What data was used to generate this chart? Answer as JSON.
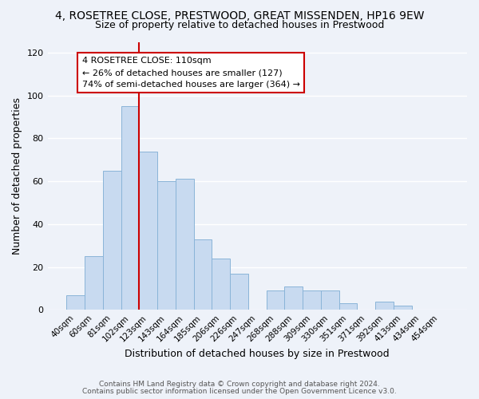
{
  "title": "4, ROSETREE CLOSE, PRESTWOOD, GREAT MISSENDEN, HP16 9EW",
  "subtitle": "Size of property relative to detached houses in Prestwood",
  "xlabel": "Distribution of detached houses by size in Prestwood",
  "ylabel": "Number of detached properties",
  "bar_labels": [
    "40sqm",
    "60sqm",
    "81sqm",
    "102sqm",
    "123sqm",
    "143sqm",
    "164sqm",
    "185sqm",
    "206sqm",
    "226sqm",
    "247sqm",
    "268sqm",
    "288sqm",
    "309sqm",
    "330sqm",
    "351sqm",
    "371sqm",
    "392sqm",
    "413sqm",
    "434sqm",
    "454sqm"
  ],
  "bar_values": [
    7,
    25,
    65,
    95,
    74,
    60,
    61,
    33,
    24,
    17,
    0,
    9,
    11,
    9,
    9,
    3,
    0,
    4,
    2,
    0,
    0
  ],
  "bar_color": "#c8daf0",
  "bar_edge_color": "#8ab4d8",
  "vline_x": 3.5,
  "vline_color": "#cc0000",
  "annotation_title": "4 ROSETREE CLOSE: 110sqm",
  "annotation_line1": "← 26% of detached houses are smaller (127)",
  "annotation_line2": "74% of semi-detached houses are larger (364) →",
  "annotation_box_color": "#ffffff",
  "annotation_box_edge": "#cc0000",
  "ylim": [
    0,
    125
  ],
  "yticks": [
    0,
    20,
    40,
    60,
    80,
    100,
    120
  ],
  "footer1": "Contains HM Land Registry data © Crown copyright and database right 2024.",
  "footer2": "Contains public sector information licensed under the Open Government Licence v3.0.",
  "bg_color": "#eef2f9",
  "grid_color": "#ffffff",
  "title_fontsize": 10,
  "subtitle_fontsize": 9,
  "axis_label_fontsize": 9,
  "tick_fontsize": 7.5
}
